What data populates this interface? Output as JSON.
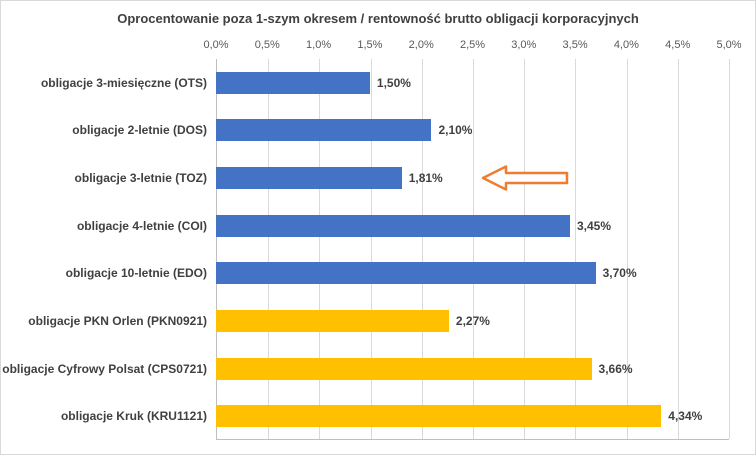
{
  "chart_data": {
    "type": "bar",
    "orientation": "horizontal",
    "title": "Oprocentowanie poza 1-szym okresem / rentowność brutto obligacji korporacyjnych",
    "categories": [
      "obligacje 3-miesięczne (OTS)",
      "obligacje 2-letnie (DOS)",
      "obligacje 3-letnie (TOZ)",
      "obligacje 4-letnie (COI)",
      "obligacje 10-letnie (EDO)",
      "obligacje PKN Orlen (PKN0921)",
      "obligacje Cyfrowy Polsat (CPS0721)",
      "obligacje Kruk (KRU1121)"
    ],
    "values": [
      1.5,
      2.1,
      1.81,
      3.45,
      3.7,
      2.27,
      3.66,
      4.34
    ],
    "value_labels": [
      "1,50%",
      "2,10%",
      "1,81%",
      "3,45%",
      "3,70%",
      "2,27%",
      "3,66%",
      "4,34%"
    ],
    "bar_colors": [
      "#4472C4",
      "#4472C4",
      "#4472C4",
      "#4472C4",
      "#4472C4",
      "#FFC000",
      "#FFC000",
      "#FFC000"
    ],
    "x_ticks": [
      "0,0%",
      "0,5%",
      "1,0%",
      "1,5%",
      "2,0%",
      "2,5%",
      "3,0%",
      "3,5%",
      "4,0%",
      "4,5%",
      "5,0%"
    ],
    "xlim": [
      0,
      5
    ],
    "grid": "vertical",
    "legend": "none",
    "annotation": {
      "type": "arrow-left",
      "target_category": "obligacje 3-letnie (TOZ)",
      "row": 2,
      "color": "#ED7D31"
    },
    "colors": {
      "blue_series": "#4472C4",
      "yellow_series": "#FFC000",
      "arrow": "#ED7D31",
      "grid": "#d9d9d9",
      "text": "#404040"
    }
  }
}
